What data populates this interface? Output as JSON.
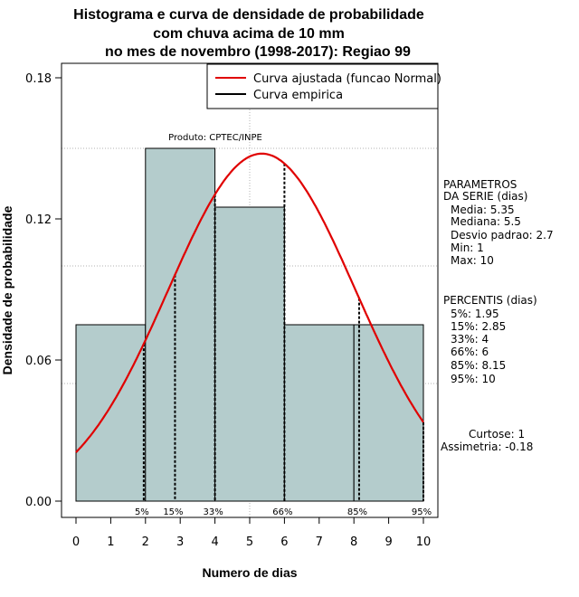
{
  "chart_data": {
    "type": "bar",
    "title_lines": [
      "Histograma e curva de densidade de probabilidade",
      "com chuva acima de 10 mm",
      "no mes de novembro (1998-2017): Regiao 99"
    ],
    "xlabel": "Numero de dias",
    "ylabel": "Densidade de probabilidade",
    "xlim": [
      0,
      10
    ],
    "ylim": [
      0,
      0.18
    ],
    "x_ticks": [
      0,
      1,
      2,
      3,
      4,
      5,
      6,
      7,
      8,
      9,
      10
    ],
    "y_ticks": [
      0.0,
      0.06,
      0.12,
      0.18
    ],
    "y_tick_labels": [
      "0.00",
      "0.06",
      "0.12",
      "0.18"
    ],
    "hgrid": [
      0.05,
      0.1,
      0.15
    ],
    "vgrid": [
      5
    ],
    "bins": [
      {
        "start": 0,
        "end": 2,
        "density": 0.075
      },
      {
        "start": 2,
        "end": 4,
        "density": 0.15
      },
      {
        "start": 4,
        "end": 6,
        "density": 0.125
      },
      {
        "start": 6,
        "end": 8,
        "density": 0.075
      },
      {
        "start": 8,
        "end": 10,
        "density": 0.075
      }
    ],
    "normal_fit": {
      "mean": 5.35,
      "sd": 2.7
    },
    "percentile_marks": [
      {
        "label": "5%",
        "x": 1.95
      },
      {
        "label": "15%",
        "x": 2.85
      },
      {
        "label": "33%",
        "x": 4
      },
      {
        "label": "66%",
        "x": 6
      },
      {
        "label": "85%",
        "x": 8.15
      },
      {
        "label": "95%",
        "x": 10
      }
    ],
    "legend": [
      {
        "label": "Curva ajustada (funcao Normal)",
        "color": "#e00000"
      },
      {
        "label": "Curva empirica",
        "color": "#000000"
      }
    ],
    "product_label": "Produto: CPTEC/INPE",
    "parameters": {
      "header": [
        "PARAMETROS",
        "DA SERIE (dias)"
      ],
      "lines": [
        "Media: 5.35",
        "Mediana: 5.5",
        "Desvio padrao: 2.7",
        "Min: 1",
        "Max: 10"
      ]
    },
    "percentiles": {
      "header": "PERCENTIS (dias)",
      "lines": [
        "5%: 1.95",
        "15%: 2.85",
        "33%: 4",
        "66%: 6",
        "85%: 8.15",
        "95%: 10"
      ]
    },
    "shape_stats": [
      "Curtose: 1",
      "Assimetria: -0.18"
    ],
    "colors": {
      "bar_fill": "#b4cccc",
      "curve": "#e00000",
      "grid": "#b0b0b0"
    }
  }
}
